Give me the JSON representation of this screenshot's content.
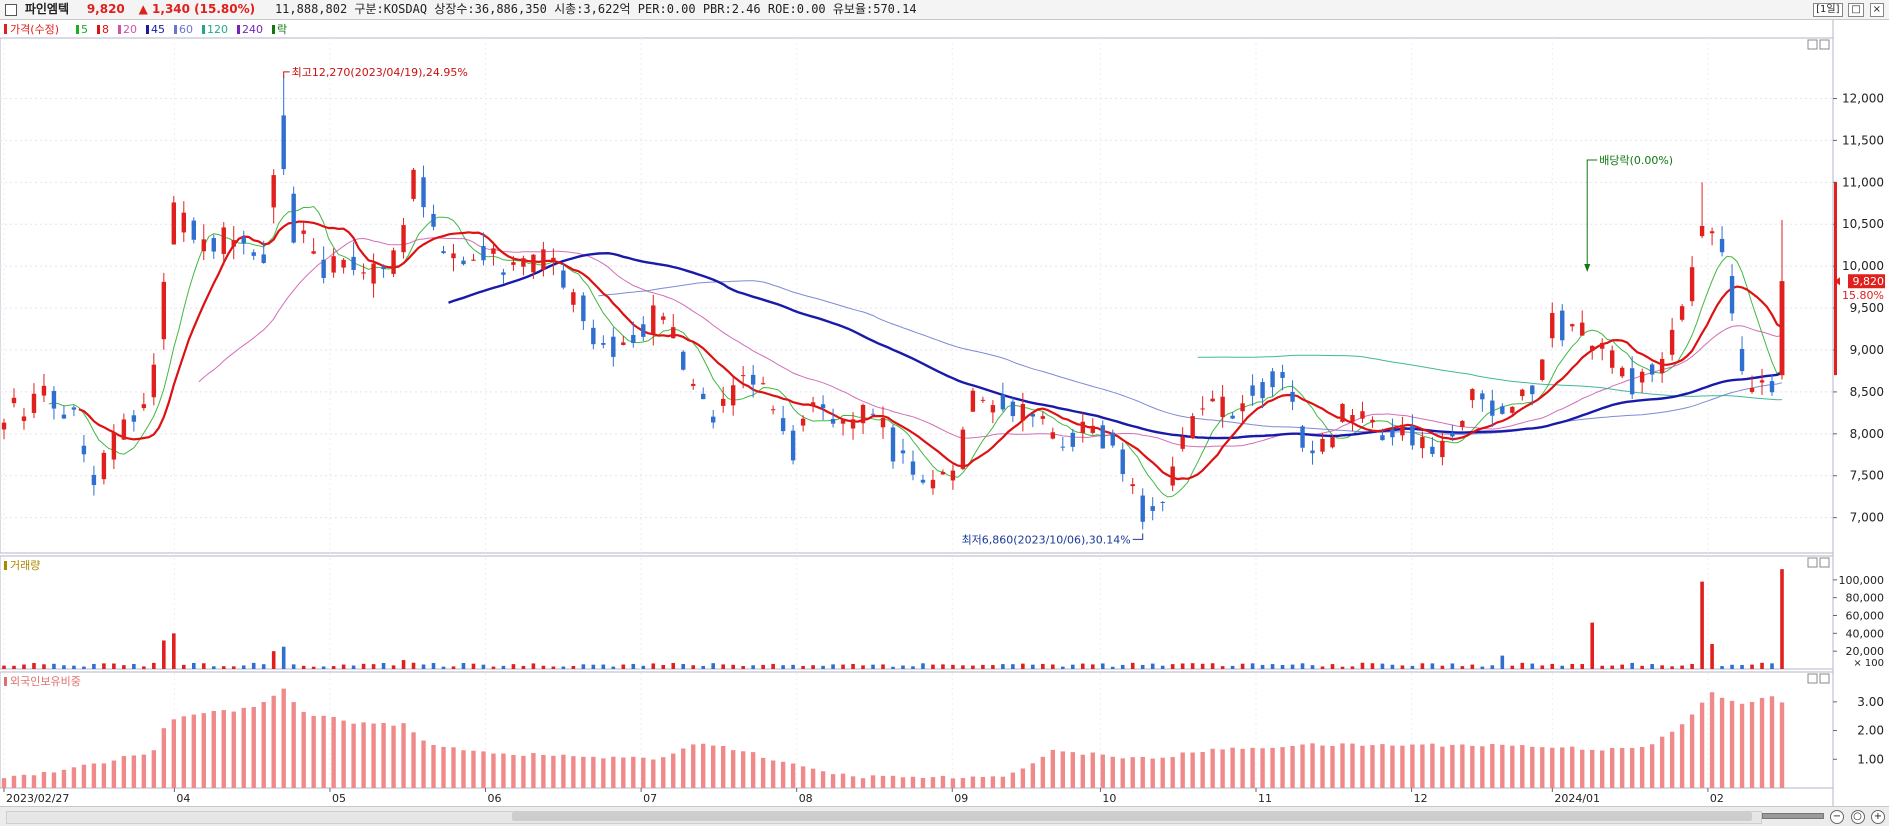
{
  "header": {
    "name": "파인엠텍",
    "price": "9,820",
    "change": "▲ 1,340 (15.80%)",
    "info": "11,888,802  구분:KOSDAQ 상장수:36,886,350 시총:3,622억 PER:0.00 PBR:2.46 ROE:0.00 유보율:570.14",
    "period": "[1일]"
  },
  "legend": {
    "price": "가격(수정)",
    "ma": [
      {
        "label": "5",
        "color": "#22aa22"
      },
      {
        "label": "8",
        "color": "#dd1111"
      },
      {
        "label": "20",
        "color": "#cc55aa"
      },
      {
        "label": "45",
        "color": "#1a1aaa"
      },
      {
        "label": "60",
        "color": "#6677cc"
      },
      {
        "label": "120",
        "color": "#22aa88"
      },
      {
        "label": "240",
        "color": "#7722bb"
      }
    ],
    "dividend": "락",
    "volume": "거래량",
    "foreign": "외국인보유비중"
  },
  "annotations": {
    "high": "최고12,270(2023/04/19),24.95%",
    "low": "최저6,860(2023/10/06),30.14%",
    "dividend": "배당락(0.00%)",
    "last_price": "9,820",
    "last_pct": "15.80%"
  },
  "axes": {
    "price_ticks": [
      "12,000",
      "11,500",
      "11,000",
      "10,500",
      "10,000",
      "9,500",
      "9,000",
      "8,500",
      "8,000",
      "7,500",
      "7,000"
    ],
    "volume_ticks": [
      "100,000",
      "80,000",
      "60,000",
      "40,000",
      "20,000"
    ],
    "volume_unit": "× 100",
    "foreign_ticks": [
      "3.00",
      "2.00",
      "1.00"
    ],
    "x_labels": [
      "2023/02/27",
      "04",
      "05",
      "06",
      "07",
      "08",
      "09",
      "10",
      "11",
      "12",
      "2024/01",
      "02"
    ]
  },
  "chart_data": {
    "type": "candlestick",
    "price_range": [
      6650,
      12650
    ],
    "volume_range": [
      0,
      120000
    ],
    "foreign_range": [
      0,
      3.9
    ],
    "anchors": [
      [
        0,
        8250
      ],
      [
        8,
        8450
      ],
      [
        14,
        8150
      ],
      [
        18,
        7450
      ],
      [
        22,
        7900
      ],
      [
        28,
        8350
      ],
      [
        30,
        8700
      ],
      [
        34,
        10600
      ],
      [
        40,
        10250
      ],
      [
        46,
        10300
      ],
      [
        52,
        10100
      ],
      [
        55,
        11800
      ],
      [
        58,
        10400
      ],
      [
        64,
        10000
      ],
      [
        68,
        10200
      ],
      [
        72,
        9900
      ],
      [
        78,
        10050
      ],
      [
        82,
        11000
      ],
      [
        86,
        10400
      ],
      [
        90,
        10050
      ],
      [
        96,
        10200
      ],
      [
        102,
        10000
      ],
      [
        108,
        10100
      ],
      [
        112,
        9800
      ],
      [
        118,
        9200
      ],
      [
        124,
        9000
      ],
      [
        130,
        9400
      ],
      [
        134,
        9150
      ],
      [
        138,
        8500
      ],
      [
        142,
        8100
      ],
      [
        148,
        8700
      ],
      [
        154,
        8400
      ],
      [
        158,
        7800
      ],
      [
        162,
        8500
      ],
      [
        168,
        8100
      ],
      [
        174,
        8300
      ],
      [
        178,
        7800
      ],
      [
        184,
        7400
      ],
      [
        190,
        7500
      ],
      [
        194,
        8400
      ],
      [
        200,
        8300
      ],
      [
        206,
        8200
      ],
      [
        212,
        7900
      ],
      [
        218,
        8100
      ],
      [
        222,
        7800
      ],
      [
        226,
        7400
      ],
      [
        228,
        6950
      ],
      [
        232,
        7300
      ],
      [
        236,
        7900
      ],
      [
        240,
        8400
      ],
      [
        246,
        8300
      ],
      [
        250,
        8500
      ],
      [
        256,
        8700
      ],
      [
        260,
        7800
      ],
      [
        264,
        7900
      ],
      [
        268,
        8300
      ],
      [
        272,
        8200
      ],
      [
        276,
        7950
      ],
      [
        280,
        8100
      ],
      [
        286,
        7750
      ],
      [
        290,
        8100
      ],
      [
        294,
        8450
      ],
      [
        298,
        8300
      ],
      [
        302,
        8400
      ],
      [
        306,
        8500
      ],
      [
        310,
        9300
      ],
      [
        316,
        9200
      ],
      [
        320,
        9000
      ],
      [
        326,
        8600
      ],
      [
        332,
        8800
      ],
      [
        336,
        9400
      ],
      [
        340,
        10600
      ],
      [
        343,
        10300
      ],
      [
        346,
        9500
      ],
      [
        348,
        8700
      ],
      [
        352,
        8600
      ],
      [
        355,
        8500
      ],
      [
        356,
        9820
      ]
    ],
    "volume_spikes": [
      [
        33,
        32000
      ],
      [
        34,
        40000
      ],
      [
        55,
        20000
      ],
      [
        56,
        25000
      ],
      [
        57,
        18000
      ],
      [
        80,
        10000
      ],
      [
        120,
        5000
      ],
      [
        300,
        15000
      ],
      [
        318,
        52000
      ],
      [
        340,
        98000
      ],
      [
        342,
        28000
      ],
      [
        343,
        18000
      ],
      [
        356,
        112000
      ]
    ],
    "foreign_anchors": [
      [
        0,
        0.35
      ],
      [
        10,
        0.6
      ],
      [
        20,
        0.9
      ],
      [
        30,
        1.3
      ],
      [
        33,
        2.4
      ],
      [
        40,
        2.6
      ],
      [
        50,
        2.8
      ],
      [
        56,
        3.4
      ],
      [
        60,
        2.6
      ],
      [
        70,
        2.3
      ],
      [
        80,
        2.2
      ],
      [
        85,
        1.5
      ],
      [
        100,
        1.2
      ],
      [
        130,
        1.0
      ],
      [
        140,
        1.6
      ],
      [
        150,
        1.2
      ],
      [
        160,
        0.7
      ],
      [
        170,
        0.4
      ],
      [
        200,
        0.35
      ],
      [
        210,
        1.3
      ],
      [
        230,
        1.0
      ],
      [
        240,
        1.3
      ],
      [
        250,
        1.4
      ],
      [
        260,
        1.5
      ],
      [
        280,
        1.5
      ],
      [
        300,
        1.5
      ],
      [
        320,
        1.35
      ],
      [
        330,
        1.5
      ],
      [
        336,
        2.2
      ],
      [
        342,
        3.3
      ],
      [
        348,
        2.9
      ],
      [
        354,
        3.2
      ],
      [
        356,
        3.0
      ]
    ],
    "dividend_day": 318,
    "high_day": 56,
    "low_day": 228
  }
}
